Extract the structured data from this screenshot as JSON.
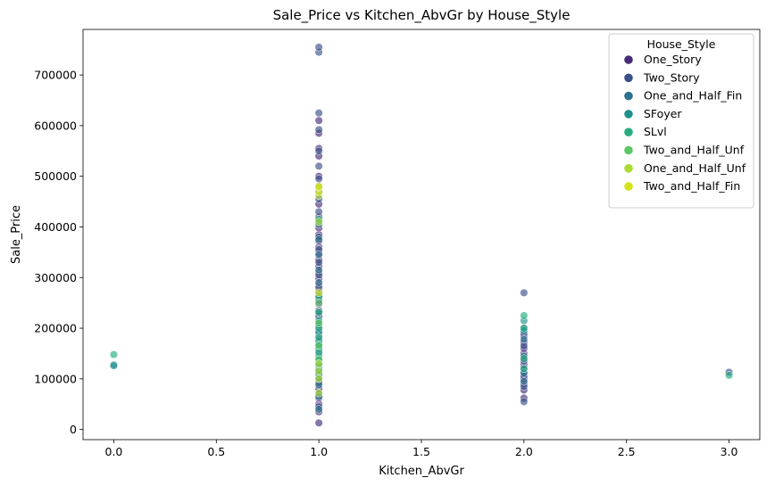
{
  "chart_data": {
    "type": "scatter",
    "title": "Sale_Price vs Kitchen_AbvGr by House_Style",
    "xlabel": "Kitchen_AbvGr",
    "ylabel": "Sale_Price",
    "xlim": [
      -0.15,
      3.15
    ],
    "ylim": [
      -20000,
      790000
    ],
    "xticks": [
      0.0,
      0.5,
      1.0,
      1.5,
      2.0,
      2.5,
      3.0
    ],
    "xtick_labels": [
      "0.0",
      "0.5",
      "1.0",
      "1.5",
      "2.0",
      "2.5",
      "3.0"
    ],
    "yticks": [
      0,
      100000,
      200000,
      300000,
      400000,
      500000,
      600000,
      700000
    ],
    "ytick_labels": [
      "0",
      "100000",
      "200000",
      "300000",
      "400000",
      "500000",
      "600000",
      "700000"
    ],
    "grid": false,
    "legend": {
      "title": "House_Style",
      "placement": "top-right"
    },
    "series": [
      {
        "name": "One_Story",
        "color": "#472c7a",
        "points": [
          [
            1,
            13000
          ],
          [
            1,
            35000
          ],
          [
            1,
            50000
          ],
          [
            1,
            62000
          ],
          [
            1,
            80000
          ],
          [
            1,
            95000
          ],
          [
            1,
            108000
          ],
          [
            1,
            120000
          ],
          [
            1,
            135000
          ],
          [
            1,
            148000
          ],
          [
            1,
            160000
          ],
          [
            1,
            172000
          ],
          [
            1,
            185000
          ],
          [
            1,
            198000
          ],
          [
            1,
            210000
          ],
          [
            1,
            222000
          ],
          [
            1,
            235000
          ],
          [
            1,
            248000
          ],
          [
            1,
            260000
          ],
          [
            1,
            272000
          ],
          [
            1,
            285000
          ],
          [
            1,
            298000
          ],
          [
            1,
            310000
          ],
          [
            1,
            322000
          ],
          [
            1,
            335000
          ],
          [
            1,
            348000
          ],
          [
            1,
            360000
          ],
          [
            1,
            372000
          ],
          [
            1,
            385000
          ],
          [
            1,
            398000
          ],
          [
            1,
            420000
          ],
          [
            1,
            445000
          ],
          [
            1,
            470000
          ],
          [
            1,
            500000
          ],
          [
            1,
            540000
          ],
          [
            1,
            555000
          ],
          [
            1,
            585000
          ],
          [
            1,
            610000
          ],
          [
            2,
            62000
          ],
          [
            2,
            78000
          ],
          [
            2,
            90000
          ],
          [
            2,
            100000
          ],
          [
            2,
            110000
          ],
          [
            2,
            128000
          ],
          [
            2,
            140000
          ],
          [
            2,
            150000
          ],
          [
            2,
            160000
          ],
          [
            2,
            172000
          ],
          [
            2,
            185000
          ]
        ]
      },
      {
        "name": "Two_Story",
        "color": "#3b518b",
        "points": [
          [
            1,
            45000
          ],
          [
            1,
            70000
          ],
          [
            1,
            92000
          ],
          [
            1,
            115000
          ],
          [
            1,
            142000
          ],
          [
            1,
            168000
          ],
          [
            1,
            195000
          ],
          [
            1,
            225000
          ],
          [
            1,
            255000
          ],
          [
            1,
            280000
          ],
          [
            1,
            305000
          ],
          [
            1,
            330000
          ],
          [
            1,
            355000
          ],
          [
            1,
            380000
          ],
          [
            1,
            410000
          ],
          [
            1,
            430000
          ],
          [
            1,
            455000
          ],
          [
            1,
            480000
          ],
          [
            1,
            495000
          ],
          [
            1,
            520000
          ],
          [
            1,
            550000
          ],
          [
            1,
            592000
          ],
          [
            1,
            625000
          ],
          [
            1,
            745000
          ],
          [
            1,
            755000
          ],
          [
            2,
            55000
          ],
          [
            2,
            85000
          ],
          [
            2,
            105000
          ],
          [
            2,
            120000
          ],
          [
            2,
            135000
          ],
          [
            2,
            165000
          ],
          [
            2,
            190000
          ],
          [
            2,
            200000
          ],
          [
            2,
            270000
          ],
          [
            3,
            113000
          ]
        ]
      },
      {
        "name": "One_and_Half_Fin",
        "color": "#2c718e",
        "points": [
          [
            1,
            40000
          ],
          [
            1,
            65000
          ],
          [
            1,
            88000
          ],
          [
            1,
            102000
          ],
          [
            1,
            125000
          ],
          [
            1,
            155000
          ],
          [
            1,
            178000
          ],
          [
            1,
            205000
          ],
          [
            1,
            230000
          ],
          [
            1,
            265000
          ],
          [
            1,
            290000
          ],
          [
            1,
            315000
          ],
          [
            1,
            345000
          ],
          [
            1,
            375000
          ],
          [
            1,
            405000
          ],
          [
            2,
            95000
          ],
          [
            2,
            112000
          ],
          [
            2,
            145000
          ],
          [
            2,
            178000
          ]
        ]
      },
      {
        "name": "SFoyer",
        "color": "#21908d",
        "points": [
          [
            0,
            128000
          ],
          [
            0,
            126000
          ],
          [
            1,
            118000
          ],
          [
            1,
            130000
          ],
          [
            1,
            145000
          ],
          [
            1,
            160000
          ],
          [
            1,
            175000
          ],
          [
            1,
            192000
          ],
          [
            1,
            410000
          ],
          [
            2,
            195000
          ],
          [
            2,
            215000
          ]
        ]
      },
      {
        "name": "SLvl",
        "color": "#27ad81",
        "points": [
          [
            0,
            148000
          ],
          [
            1,
            110000
          ],
          [
            1,
            128000
          ],
          [
            1,
            140000
          ],
          [
            1,
            152000
          ],
          [
            1,
            168000
          ],
          [
            1,
            182000
          ],
          [
            1,
            200000
          ],
          [
            1,
            215000
          ],
          [
            1,
            232000
          ],
          [
            1,
            262000
          ],
          [
            1,
            415000
          ],
          [
            2,
            120000
          ],
          [
            2,
            140000
          ],
          [
            2,
            200000
          ],
          [
            2,
            225000
          ],
          [
            3,
            107000
          ]
        ]
      },
      {
        "name": "Two_and_Half_Unf",
        "color": "#5cc863",
        "points": [
          [
            1,
            138000
          ],
          [
            1,
            165000
          ],
          [
            1,
            210000
          ],
          [
            1,
            250000
          ],
          [
            1,
            475000
          ]
        ]
      },
      {
        "name": "One_and_Half_Unf",
        "color": "#aadc32",
        "points": [
          [
            1,
            72000
          ],
          [
            1,
            100000
          ],
          [
            1,
            115000
          ],
          [
            1,
            130000
          ],
          [
            1,
            410000
          ],
          [
            1,
            462000
          ]
        ]
      },
      {
        "name": "Two_and_Half_Fin",
        "color": "#d2e21b",
        "points": [
          [
            1,
            270000
          ],
          [
            1,
            470000
          ],
          [
            1,
            478000
          ],
          [
            1,
            480000
          ]
        ]
      }
    ]
  },
  "colors": {
    "marker_edge": "#ffffff",
    "axis": "#000000",
    "legend_border": "#cccccc"
  }
}
